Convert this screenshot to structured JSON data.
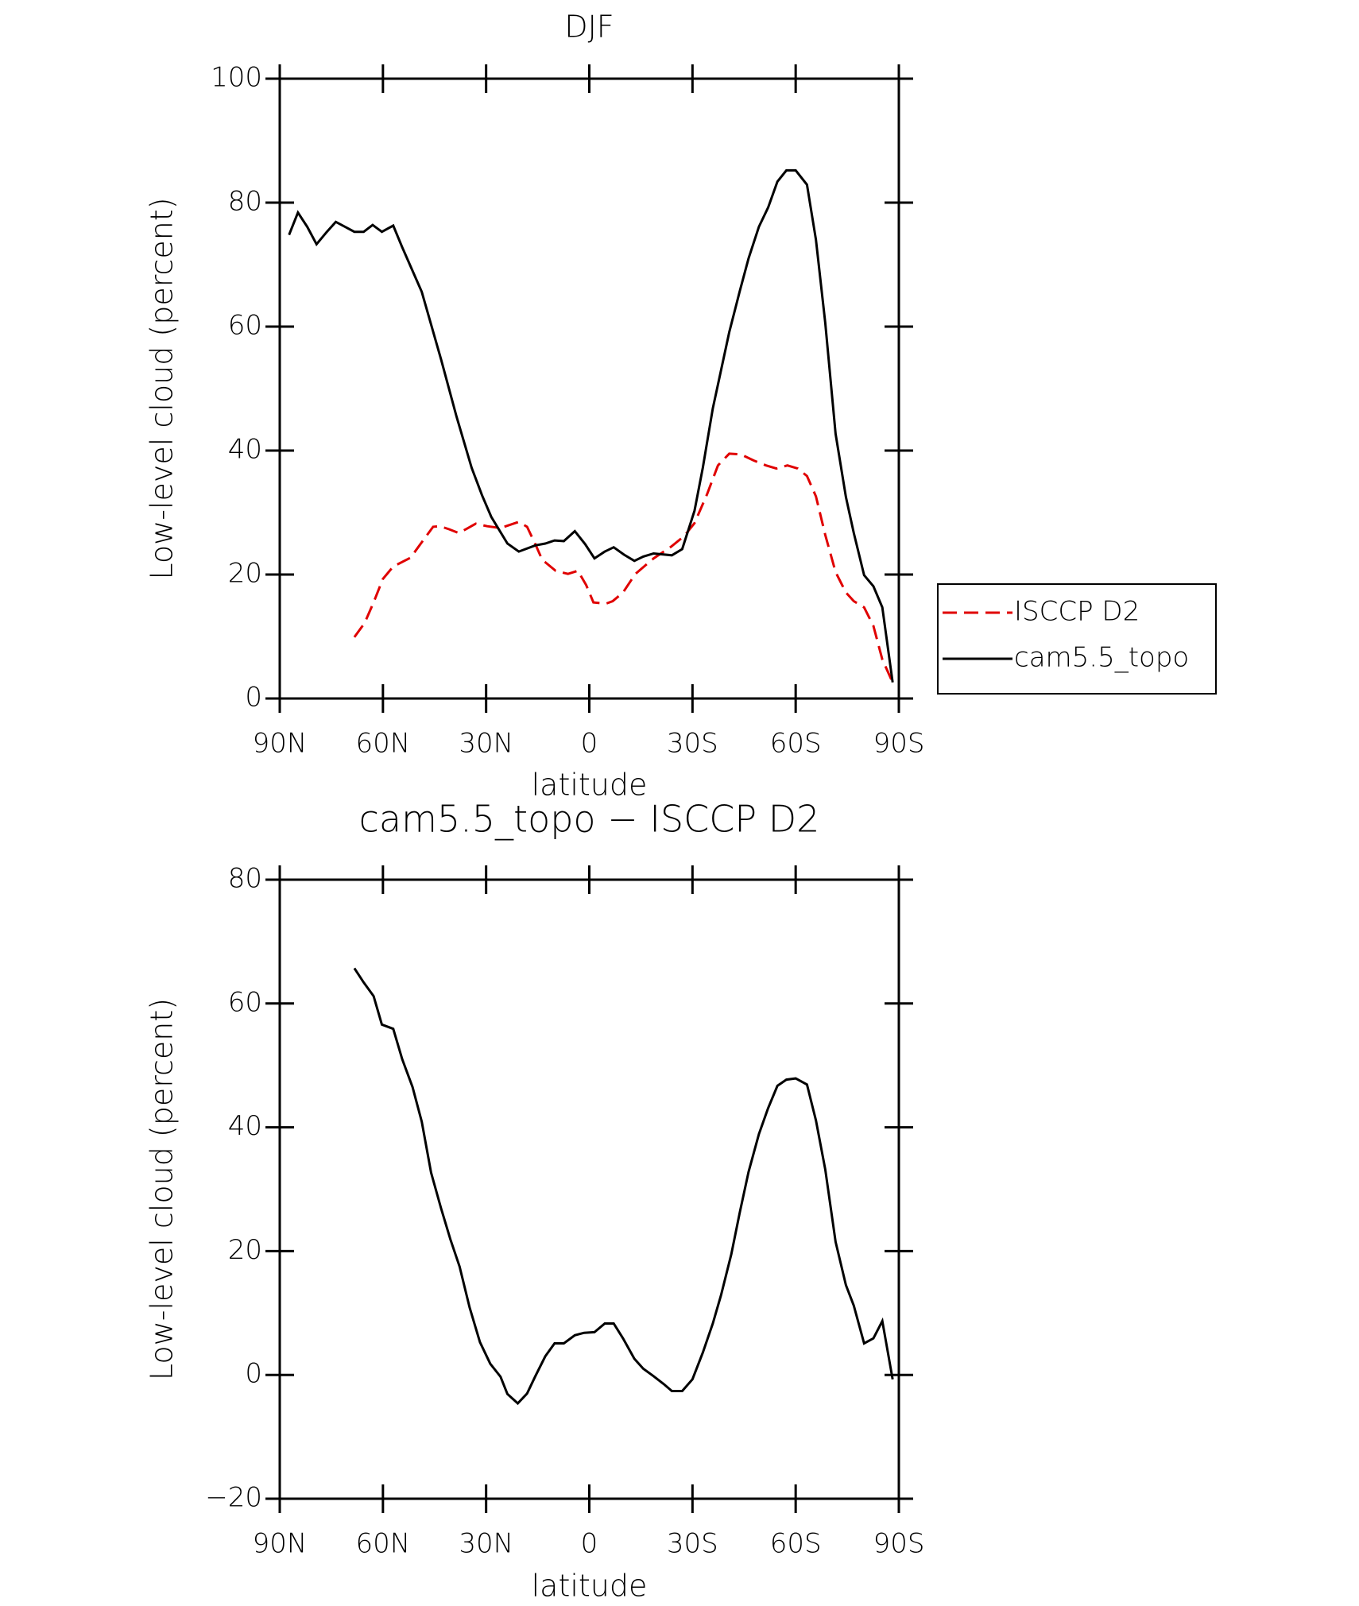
{
  "chart_data": [
    {
      "type": "line",
      "title": "DJF",
      "xlabel": "latitude",
      "ylabel": "Low-level cloud (percent)",
      "xlim": [
        90,
        -90
      ],
      "xticks": [
        {
          "value": 90,
          "label": "90N"
        },
        {
          "value": 60,
          "label": "60N"
        },
        {
          "value": 30,
          "label": "30N"
        },
        0,
        {
          "value": -30,
          "label": "30S"
        },
        {
          "value": -60,
          "label": "60S"
        },
        {
          "value": -90,
          "label": "90S"
        }
      ],
      "ylim": [
        0,
        100
      ],
      "yticks": [
        0,
        20,
        40,
        60,
        80,
        100
      ],
      "legend": "right",
      "series": [
        {
          "name": "ISCCP D2",
          "color": "#e00000",
          "linestyle": "dashed",
          "x": [
            68.3,
            65.3,
            62.7,
            60,
            57,
            52,
            48.7,
            45.4,
            43.4,
            40.7,
            38,
            35.9,
            33,
            29.7,
            25.8,
            20.5,
            18.1,
            15.7,
            13.7,
            9.8,
            6.2,
            3.3,
            0.9,
            -1.2,
            -4.8,
            -6.8,
            -9.8,
            -13.4,
            -18.7,
            -23.8,
            -27.6,
            -30.6,
            -34.2,
            -37.4,
            -40.7,
            -44,
            -47.8,
            -51.4,
            -54.4,
            -57.6,
            -60.6,
            -63.3,
            -65.9,
            -68.6,
            -71.6,
            -74.6,
            -76.9,
            -79.9,
            -82.6,
            -85.2,
            -88.2
          ],
          "values": [
            9.9,
            12.2,
            15.5,
            19.3,
            21.3,
            22.7,
            25.2,
            27.7,
            27.8,
            27.3,
            26.7,
            27.3,
            28.2,
            27.8,
            27.5,
            28.5,
            27.7,
            24.9,
            22.4,
            20.6,
            20.1,
            20.6,
            18.3,
            15.5,
            15.3,
            15.7,
            17.1,
            20.1,
            22.6,
            24.5,
            26.2,
            28.3,
            32.9,
            37.6,
            39.5,
            39.4,
            38.4,
            37.6,
            37.1,
            37.6,
            37.1,
            35.9,
            32.6,
            26.4,
            20.4,
            17.1,
            15.7,
            14.7,
            11.7,
            6.3,
            2.6
          ]
        },
        {
          "name": "cam5.5_topo",
          "color": "#000000",
          "linestyle": "solid",
          "x": [
            87.3,
            84.7,
            82,
            79.3,
            76.3,
            73.7,
            71,
            68.3,
            65.6,
            63,
            60.3,
            57,
            54.4,
            48.7,
            43.1,
            38.6,
            34.2,
            31.2,
            28.5,
            23.8,
            20.5,
            15.7,
            12.8,
            10.1,
            7.4,
            4.2,
            1.2,
            -1.5,
            -4.5,
            -7.1,
            -10.1,
            -13.1,
            -15.7,
            -18.7,
            -24,
            -27,
            -30.6,
            -33,
            -35.9,
            -40.7,
            -43.7,
            -46.3,
            -49.3,
            -52,
            -54.7,
            -57.3,
            -60,
            -63.3,
            -65.9,
            -68.6,
            -71.6,
            -74.6,
            -76.9,
            -79.9,
            -82.6,
            -85.2,
            -88.2
          ],
          "values": [
            74.8,
            78.4,
            76.1,
            73.3,
            75.3,
            76.9,
            76.1,
            75.3,
            75.3,
            76.4,
            75.3,
            76.3,
            72.8,
            65.6,
            54.7,
            45.5,
            37.2,
            32.8,
            29.3,
            25,
            23.7,
            24.7,
            25,
            25.5,
            25.4,
            27,
            24.9,
            22.6,
            23.7,
            24.4,
            23.2,
            22.2,
            22.9,
            23.4,
            23.1,
            24.1,
            30.3,
            37.2,
            46.8,
            59.1,
            65.6,
            71,
            76.1,
            79.2,
            83.4,
            85.2,
            85.2,
            82.9,
            74,
            60.6,
            42.7,
            32.5,
            26.7,
            19.9,
            18.1,
            14.7,
            2.6
          ]
        }
      ]
    },
    {
      "type": "line",
      "title": "cam5.5_topo − ISCCP D2",
      "xlabel": "latitude",
      "ylabel": "Low-level cloud (percent)",
      "xlim": [
        90,
        -90
      ],
      "xticks": [
        {
          "value": 90,
          "label": "90N"
        },
        {
          "value": 60,
          "label": "60N"
        },
        {
          "value": 30,
          "label": "30N"
        },
        0,
        {
          "value": -30,
          "label": "30S"
        },
        {
          "value": -60,
          "label": "60S"
        },
        {
          "value": -90,
          "label": "90S"
        }
      ],
      "ylim": [
        -20,
        80
      ],
      "yticks": [
        {
          "value": -20,
          "label": "−20"
        },
        0,
        20,
        40,
        60,
        80
      ],
      "series": [
        {
          "color": "#000000",
          "linestyle": "solid",
          "x": [
            68.3,
            65.6,
            62.7,
            60.3,
            57,
            54.4,
            51.4,
            48.7,
            46,
            43.1,
            40.4,
            37.7,
            34.8,
            31.8,
            28.8,
            25.8,
            23.8,
            20.8,
            18.1,
            15.7,
            12.8,
            10.1,
            7.4,
            4.2,
            1.5,
            -1.5,
            -4.5,
            -7.1,
            -9.8,
            -13.1,
            -15.7,
            -18.7,
            -21.7,
            -24,
            -27,
            -30,
            -33,
            -35.9,
            -38.3,
            -41.3,
            -43.7,
            -46.3,
            -49.3,
            -52,
            -54.7,
            -57.3,
            -60,
            -63.3,
            -65.9,
            -68.6,
            -71.6,
            -74.6,
            -76.9,
            -79.9,
            -82.6,
            -85.2,
            -88.2
          ],
          "values": [
            65.7,
            63.4,
            61.2,
            56.6,
            55.9,
            51,
            46.5,
            40.9,
            32.7,
            26.9,
            21.9,
            17.5,
            10.9,
            5.3,
            1.8,
            -0.3,
            -3.1,
            -4.6,
            -3,
            -0.2,
            3,
            5.1,
            5.1,
            6.4,
            6.8,
            6.9,
            8.3,
            8.3,
            5.9,
            2.6,
            1,
            -0.2,
            -1.5,
            -2.6,
            -2.6,
            -0.7,
            3.6,
            8.3,
            12.9,
            19.5,
            26.1,
            32.8,
            38.9,
            43.1,
            46.7,
            47.7,
            47.9,
            46.9,
            41.1,
            33.2,
            21.5,
            14.5,
            11.2,
            5.1,
            5.9,
            8.7,
            -0.7
          ]
        }
      ]
    }
  ]
}
